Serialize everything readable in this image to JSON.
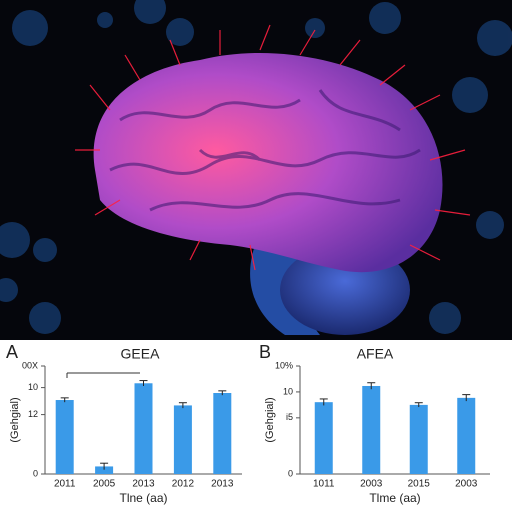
{
  "chart_data": [
    {
      "type": "bar",
      "panel": "A",
      "title": "GEEA",
      "y_label": "(Gehgial)",
      "x_label": "Tlne (aa)",
      "categories": [
        "2011",
        "2005",
        "2013",
        "2012",
        "2013"
      ],
      "values": [
        13.7,
        1.4,
        16.8,
        12.7,
        15.0
      ],
      "errors": [
        0.4,
        0.6,
        0.5,
        0.5,
        0.4
      ],
      "color": "#3a9ae8",
      "ylim": [
        0,
        20
      ],
      "yticks": [
        0,
        {
          "value": 11,
          "label": "12"
        },
        {
          "value": 16,
          "label": "10"
        },
        {
          "value": 20,
          "label": "00X"
        }
      ]
    },
    {
      "type": "bar",
      "panel": "B",
      "title": "AFEA",
      "y_label": "(Gehgial)",
      "x_label": "Tlme (aa)",
      "categories": [
        "1011",
        "2003",
        "2015",
        "2003"
      ],
      "values": [
        13.3,
        16.3,
        12.8,
        14.1
      ],
      "errors": [
        0.6,
        0.6,
        0.4,
        0.6
      ],
      "color": "#3a9ae8",
      "ylim": [
        0,
        20
      ],
      "yticks": [
        0,
        {
          "value": 10.4,
          "label": "i5"
        },
        {
          "value": 15.2,
          "label": "10"
        },
        {
          "value": 20,
          "label": "10%"
        }
      ]
    }
  ]
}
